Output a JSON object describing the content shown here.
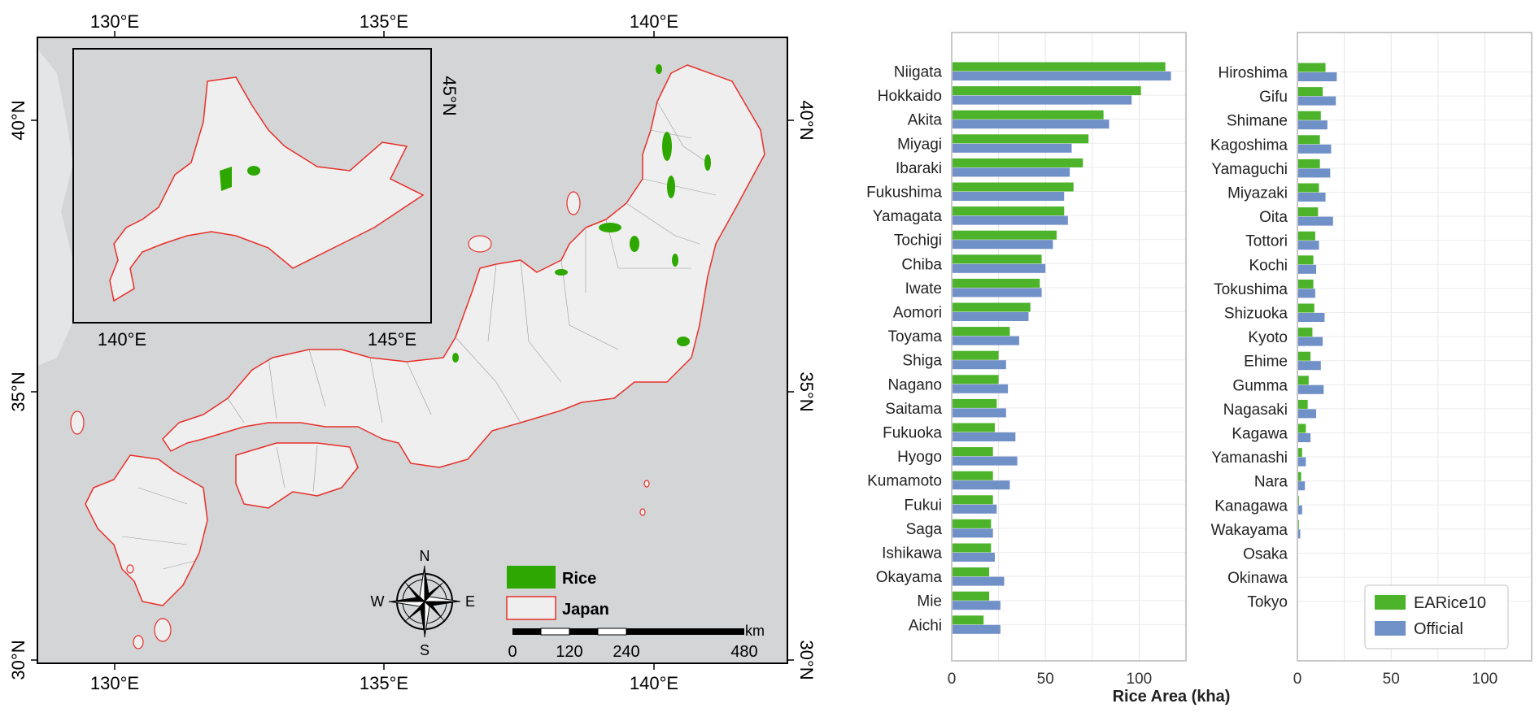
{
  "map": {
    "top_lon_labels": [
      "130°E",
      "135°E",
      "140°E"
    ],
    "bottom_lon_labels": [
      "130°E",
      "135°E",
      "140°E"
    ],
    "left_lat_labels": [
      "40°N",
      "35°N",
      "30°N"
    ],
    "right_lat_labels": [
      "40°N",
      "35°N",
      "30°N"
    ],
    "inset_lon_labels": [
      "140°E",
      "145°E"
    ],
    "inset_lat_label": "45°N",
    "compass": {
      "n": "N",
      "s": "S",
      "e": "E",
      "w": "W"
    },
    "legend": [
      {
        "label": "Rice",
        "color": "#2ea800"
      },
      {
        "label": "Japan",
        "color": "#e8302a"
      }
    ],
    "scalebar": {
      "unit": "km",
      "ticks": [
        "0",
        "120",
        "240",
        "480"
      ]
    },
    "colors": {
      "sea": "#d3d5d7",
      "land": "#efefef",
      "boundary": "#e8302a",
      "rice": "#2ea800"
    }
  },
  "chart_data": {
    "type": "bar",
    "orientation": "horizontal",
    "xlabel": "Rice Area (kha)",
    "xlim": [
      0,
      125
    ],
    "xticks": [
      0,
      50,
      100
    ],
    "grid": true,
    "legend_position": "lower-right",
    "series": [
      {
        "name": "EARice10",
        "color": "#4cb32b"
      },
      {
        "name": "Official",
        "color": "#7090c8"
      }
    ],
    "panels": [
      {
        "categories": [
          "Niigata",
          "Hokkaido",
          "Akita",
          "Miyagi",
          "Ibaraki",
          "Fukushima",
          "Yamagata",
          "Tochigi",
          "Chiba",
          "Iwate",
          "Aomori",
          "Toyama",
          "Shiga",
          "Nagano",
          "Saitama",
          "Fukuoka",
          "Hyogo",
          "Kumamoto",
          "Fukui",
          "Saga",
          "Ishikawa",
          "Okayama",
          "Mie",
          "Aichi"
        ],
        "EARice10": [
          114,
          101,
          81,
          73,
          70,
          65,
          60,
          56,
          48,
          47,
          42,
          31,
          25,
          25,
          24,
          23,
          22,
          22,
          22,
          21,
          21,
          20,
          20,
          17
        ],
        "Official": [
          117,
          96,
          84,
          64,
          63,
          60,
          62,
          54,
          50,
          48,
          41,
          36,
          29,
          30,
          29,
          34,
          35,
          31,
          24,
          22,
          23,
          28,
          26,
          26
        ]
      },
      {
        "categories": [
          "Hiroshima",
          "Gifu",
          "Shimane",
          "Kagoshima",
          "Yamaguchi",
          "Miyazaki",
          "Oita",
          "Tottori",
          "Kochi",
          "Tokushima",
          "Shizuoka",
          "Kyoto",
          "Ehime",
          "Gumma",
          "Nagasaki",
          "Kagawa",
          "Yamanashi",
          "Nara",
          "Kanagawa",
          "Wakayama",
          "Osaka",
          "Okinawa",
          "Tokyo"
        ],
        "EARice10": [
          15,
          13.5,
          12.5,
          12,
          12,
          11.5,
          11,
          9.5,
          8.5,
          8.5,
          9,
          8,
          7,
          6,
          5.5,
          4.5,
          2.5,
          2,
          0.8,
          0.8,
          0,
          0,
          0
        ],
        "Official": [
          21,
          20.5,
          16,
          18,
          17.5,
          15,
          19,
          11.5,
          10,
          9.5,
          14.5,
          13.5,
          12.5,
          14,
          10,
          7,
          4.5,
          4,
          2.5,
          1.5,
          0,
          0,
          0
        ]
      }
    ]
  }
}
